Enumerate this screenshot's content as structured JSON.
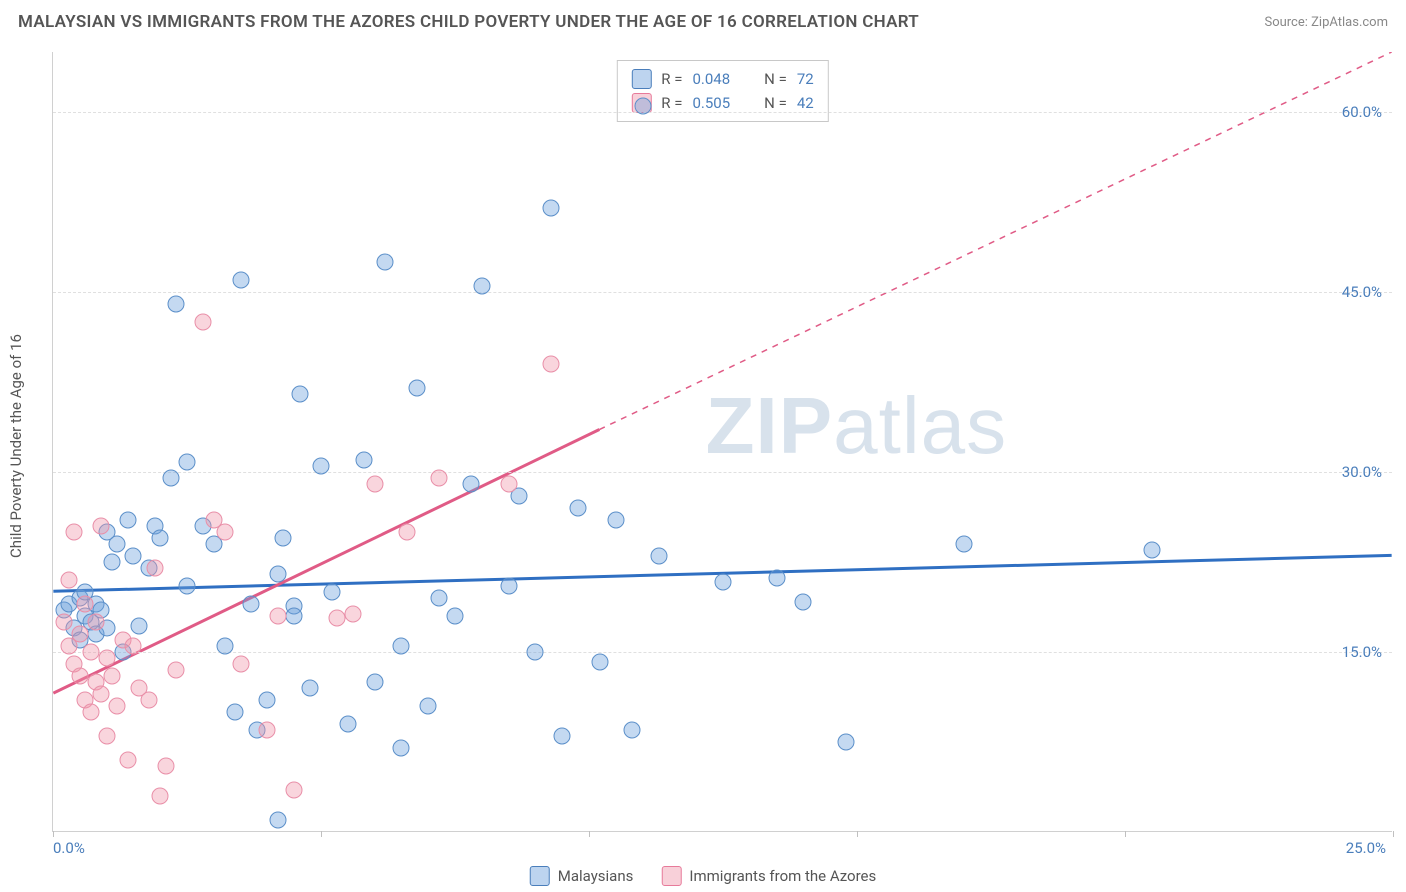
{
  "title": "MALAYSIAN VS IMMIGRANTS FROM THE AZORES CHILD POVERTY UNDER THE AGE OF 16 CORRELATION CHART",
  "source": "Source: ZipAtlas.com",
  "y_axis_label": "Child Poverty Under the Age of 16",
  "watermark_a": "ZIP",
  "watermark_b": "atlas",
  "chart": {
    "type": "scatter",
    "xlim": [
      0,
      25
    ],
    "ylim": [
      0,
      65
    ],
    "x_ticks": [
      0,
      5,
      10,
      15,
      20,
      25
    ],
    "y_gridlines": [
      15,
      30,
      45,
      60
    ],
    "x_tick_labels": {
      "0": "0.0%",
      "25": "25.0%"
    },
    "y_tick_labels": {
      "15": "15.0%",
      "30": "30.0%",
      "45": "45.0%",
      "60": "60.0%"
    },
    "background_color": "#ffffff",
    "grid_color": "#e0e0e0",
    "axis_color": "#d0d0d0",
    "tick_label_color": "#4a7ebb",
    "tick_label_fontsize": 15,
    "axis_label_fontsize": 15,
    "marker_radius": 8.5,
    "series": [
      {
        "name": "Malaysians",
        "color_fill": "rgba(108,160,220,0.40)",
        "color_stroke": "#5b8fc9",
        "r": 0.048,
        "n": 72,
        "trend": {
          "x1": 0,
          "y1": 20.0,
          "x2": 25,
          "y2": 23.0,
          "stroke": "#2f6fc2",
          "width": 3,
          "dash": "none"
        },
        "points": [
          [
            0.2,
            18.5
          ],
          [
            0.3,
            19.0
          ],
          [
            0.4,
            17.0
          ],
          [
            0.5,
            19.5
          ],
          [
            0.5,
            16.0
          ],
          [
            0.6,
            18.0
          ],
          [
            0.6,
            20.0
          ],
          [
            0.7,
            17.5
          ],
          [
            0.8,
            16.5
          ],
          [
            0.8,
            19.0
          ],
          [
            0.9,
            18.5
          ],
          [
            1.0,
            17.0
          ],
          [
            1.0,
            25.0
          ],
          [
            1.1,
            22.5
          ],
          [
            1.2,
            24.0
          ],
          [
            1.3,
            15.0
          ],
          [
            1.4,
            26.0
          ],
          [
            1.5,
            23.0
          ],
          [
            1.8,
            22.0
          ],
          [
            1.9,
            25.5
          ],
          [
            2.0,
            24.5
          ],
          [
            2.2,
            29.5
          ],
          [
            2.3,
            44.0
          ],
          [
            2.5,
            20.5
          ],
          [
            2.8,
            25.5
          ],
          [
            3.0,
            24.0
          ],
          [
            3.2,
            15.5
          ],
          [
            3.4,
            10.0
          ],
          [
            3.5,
            46.0
          ],
          [
            3.8,
            8.5
          ],
          [
            4.0,
            11.0
          ],
          [
            4.2,
            21.5
          ],
          [
            4.2,
            1.0
          ],
          [
            4.5,
            18.8
          ],
          [
            4.6,
            36.5
          ],
          [
            4.8,
            12.0
          ],
          [
            5.0,
            30.5
          ],
          [
            5.2,
            20.0
          ],
          [
            5.5,
            9.0
          ],
          [
            5.8,
            31.0
          ],
          [
            6.0,
            12.5
          ],
          [
            6.2,
            47.5
          ],
          [
            6.5,
            15.5
          ],
          [
            6.5,
            7.0
          ],
          [
            6.8,
            37.0
          ],
          [
            7.0,
            10.5
          ],
          [
            7.2,
            19.5
          ],
          [
            7.5,
            18.0
          ],
          [
            7.8,
            29.0
          ],
          [
            8.0,
            45.5
          ],
          [
            8.5,
            20.5
          ],
          [
            8.7,
            28.0
          ],
          [
            9.0,
            15.0
          ],
          [
            9.3,
            52.0
          ],
          [
            9.5,
            8.0
          ],
          [
            9.8,
            27.0
          ],
          [
            10.2,
            14.2
          ],
          [
            10.5,
            26.0
          ],
          [
            10.8,
            8.5
          ],
          [
            11.0,
            60.5
          ],
          [
            11.3,
            23.0
          ],
          [
            12.5,
            20.8
          ],
          [
            13.5,
            21.2
          ],
          [
            14.0,
            19.2
          ],
          [
            14.8,
            7.5
          ],
          [
            17.0,
            24.0
          ],
          [
            20.5,
            23.5
          ],
          [
            2.5,
            30.8
          ],
          [
            3.7,
            19.0
          ],
          [
            4.3,
            24.5
          ],
          [
            4.5,
            18.0
          ],
          [
            1.6,
            17.2
          ]
        ]
      },
      {
        "name": "Immigrants from the Azores",
        "color_fill": "rgba(240,150,170,0.40)",
        "color_stroke": "#e98fa8",
        "r": 0.505,
        "n": 42,
        "trend": {
          "x1": 0,
          "y1": 11.5,
          "x2": 10.2,
          "y2": 33.5,
          "stroke": "#e05b86",
          "width": 3,
          "dash": "none",
          "ext_x2": 25,
          "ext_y2": 65,
          "ext_dash": "6,6"
        },
        "points": [
          [
            0.2,
            17.5
          ],
          [
            0.3,
            15.5
          ],
          [
            0.3,
            21.0
          ],
          [
            0.4,
            14.0
          ],
          [
            0.4,
            25.0
          ],
          [
            0.5,
            13.0
          ],
          [
            0.5,
            16.5
          ],
          [
            0.6,
            11.0
          ],
          [
            0.6,
            19.0
          ],
          [
            0.7,
            15.0
          ],
          [
            0.7,
            10.0
          ],
          [
            0.8,
            12.5
          ],
          [
            0.8,
            17.5
          ],
          [
            0.9,
            11.5
          ],
          [
            0.9,
            25.5
          ],
          [
            1.0,
            14.5
          ],
          [
            1.0,
            8.0
          ],
          [
            1.1,
            13.0
          ],
          [
            1.2,
            10.5
          ],
          [
            1.3,
            16.0
          ],
          [
            1.4,
            6.0
          ],
          [
            1.6,
            12.0
          ],
          [
            1.8,
            11.0
          ],
          [
            1.9,
            22.0
          ],
          [
            2.0,
            3.0
          ],
          [
            2.1,
            5.5
          ],
          [
            2.3,
            13.5
          ],
          [
            2.8,
            42.5
          ],
          [
            3.0,
            26.0
          ],
          [
            3.2,
            25.0
          ],
          [
            3.5,
            14.0
          ],
          [
            4.0,
            8.5
          ],
          [
            4.2,
            18.0
          ],
          [
            4.5,
            3.5
          ],
          [
            5.3,
            17.8
          ],
          [
            5.6,
            18.2
          ],
          [
            6.0,
            29.0
          ],
          [
            6.6,
            25.0
          ],
          [
            7.2,
            29.5
          ],
          [
            8.5,
            29.0
          ],
          [
            9.3,
            39.0
          ],
          [
            1.5,
            15.5
          ]
        ]
      }
    ],
    "stats_legend_labels": {
      "r_prefix": "R = ",
      "n_prefix": "N = "
    },
    "bottom_legend_labels": [
      "Malaysians",
      "Immigrants from the Azores"
    ]
  }
}
